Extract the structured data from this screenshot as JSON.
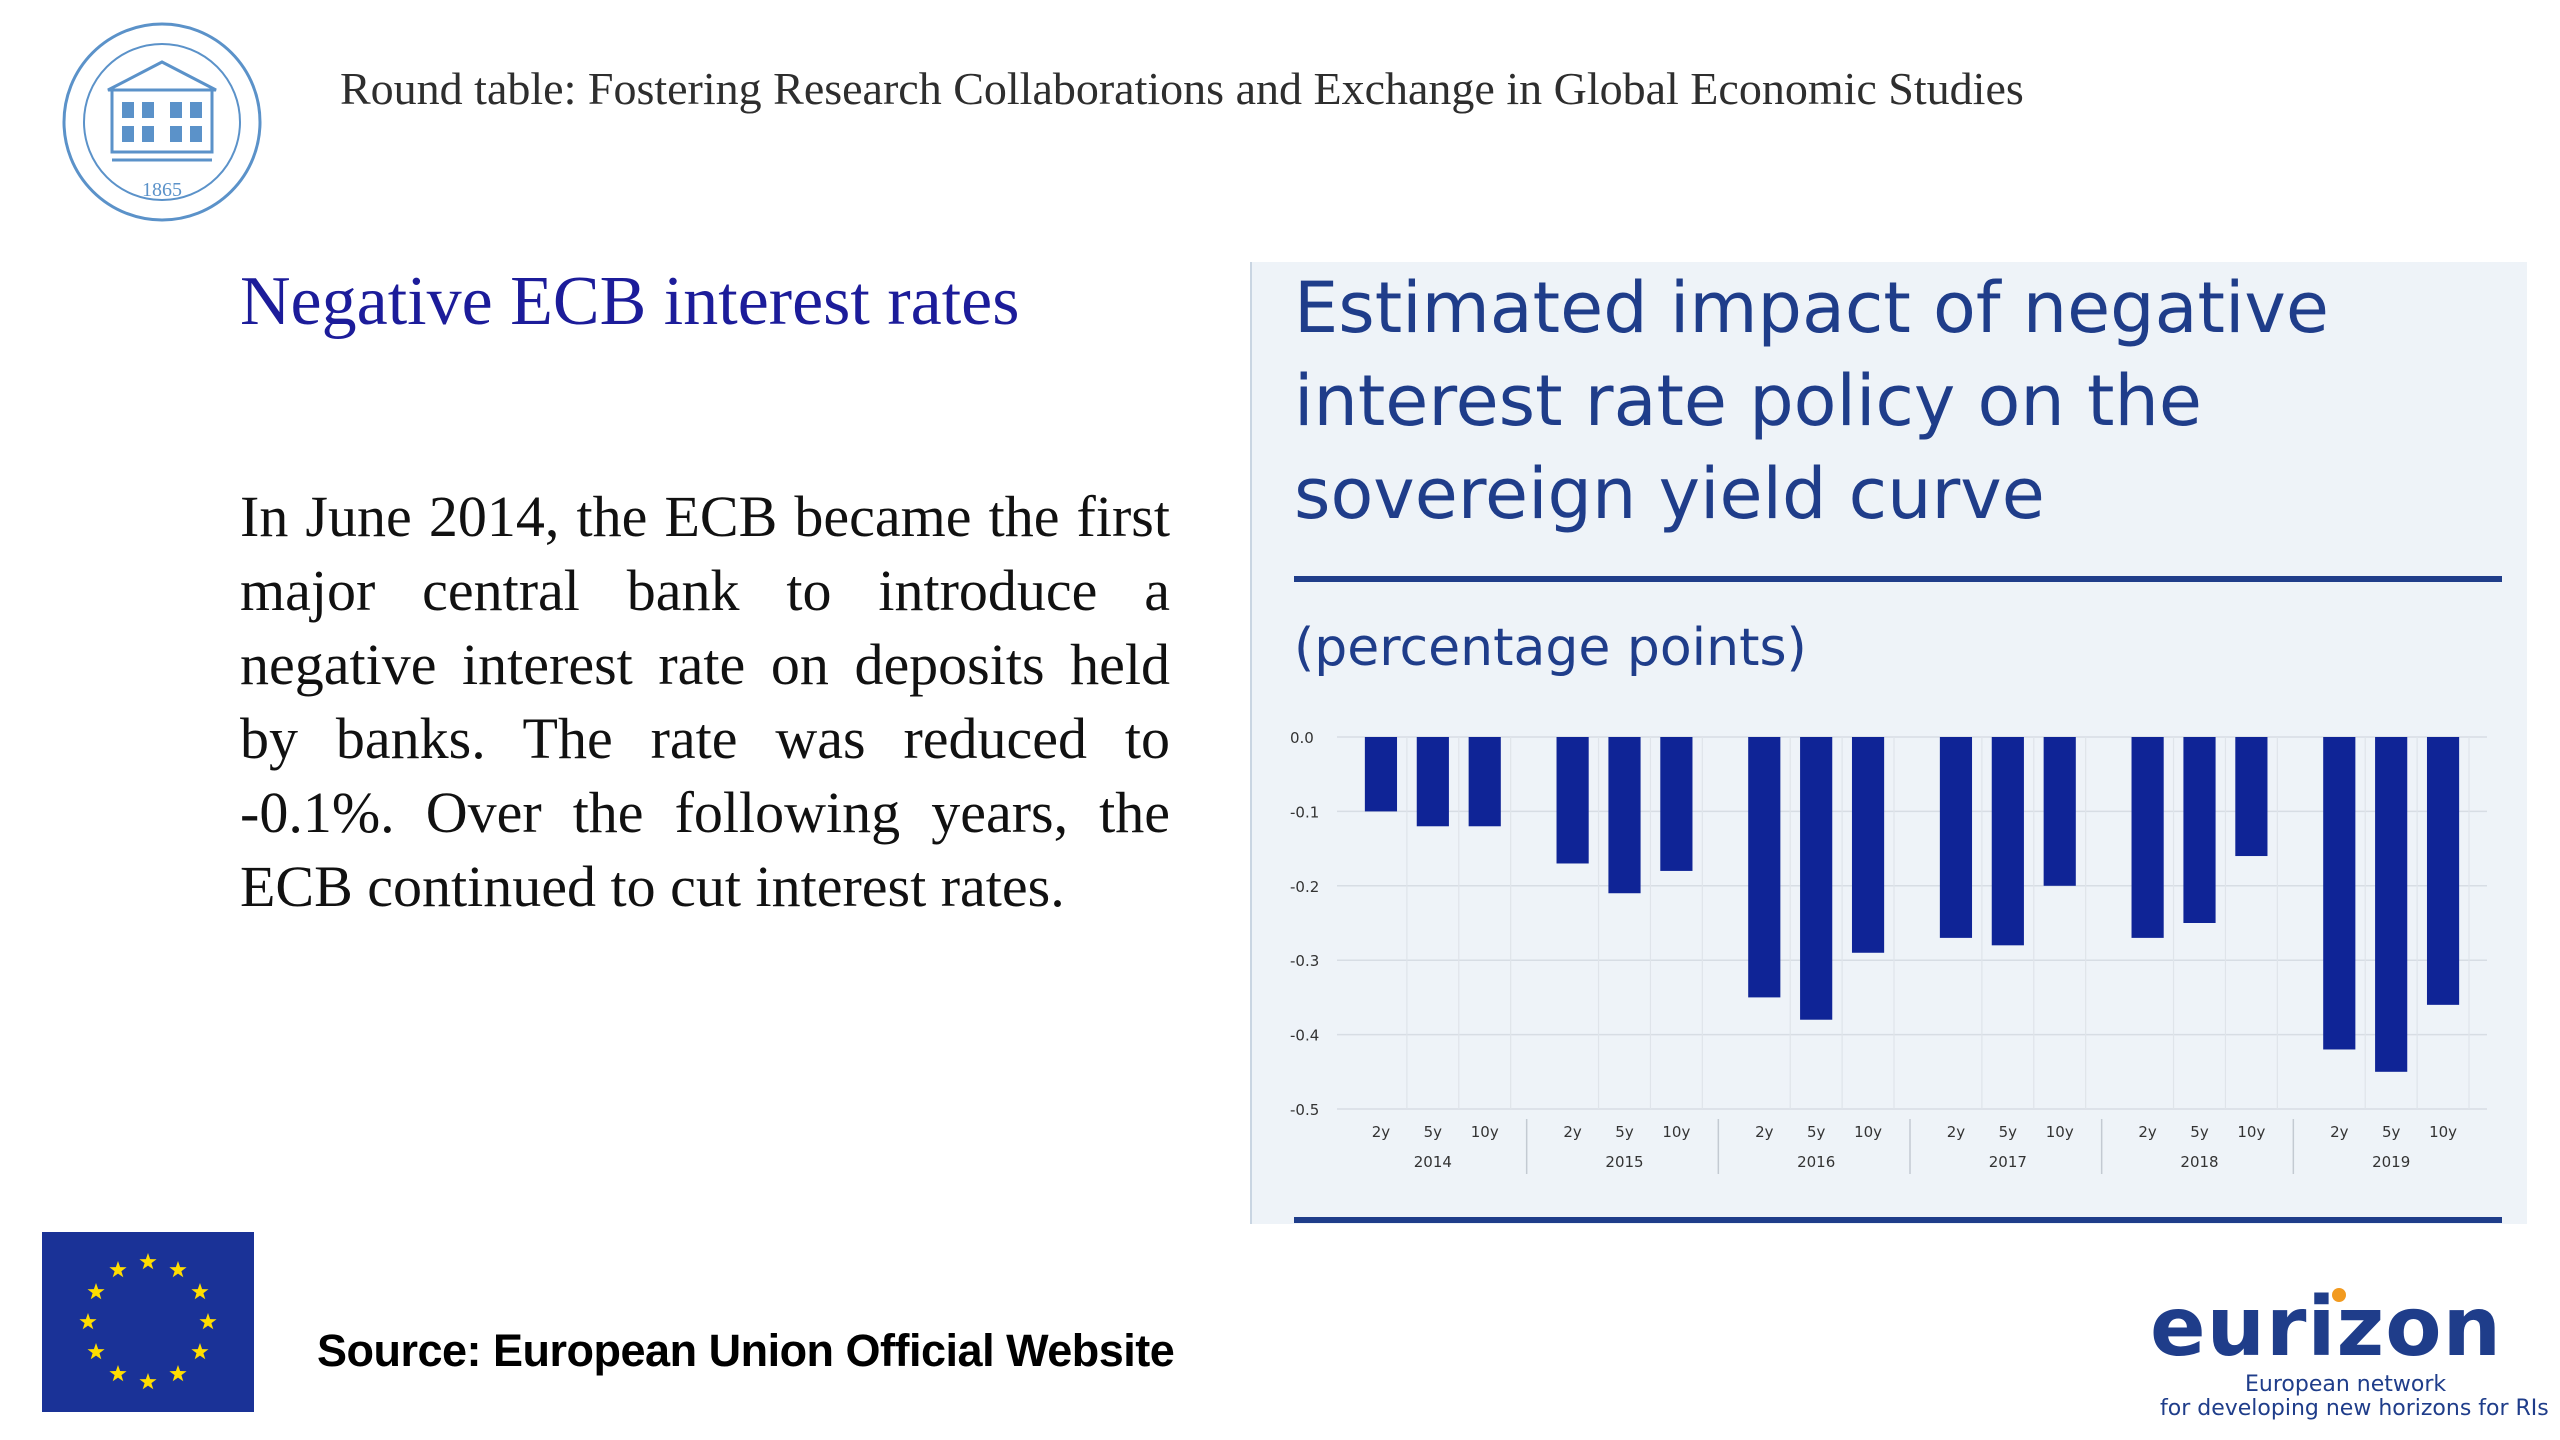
{
  "header": {
    "title": "Round table: Fostering Research Collaborations and Exchange in Global Economic Studies",
    "seal_year": "1865"
  },
  "slide": {
    "title": "Negative ECB interest rates",
    "body": "In June 2014, the ECB became the first major central bank to introduce a negative interest rate on deposits held by banks. The rate was reduced to -0.1%. Over the following years, the ECB continued to cut interest rates."
  },
  "source": "Source: European Union Official Website",
  "logo": {
    "name": "eurizon",
    "tagline_1": "European network",
    "tagline_2": "for developing new horizons for RIs"
  },
  "colors": {
    "bar": "#0f2496",
    "title": "#1f3d8a",
    "slide_title": "#1c1c9a",
    "panel_bg": "#eef3f8",
    "eu_blue": "#1a3297",
    "eu_star": "#ffdd00"
  },
  "chart_data": {
    "type": "bar",
    "title": "Estimated impact of negative interest rate policy on the sovereign yield curve",
    "subtitle": "(percentage points)",
    "ylim": [
      -0.5,
      0.0
    ],
    "yticks": [
      "0.0",
      "-0.1",
      "-0.2",
      "-0.3",
      "-0.4",
      "-0.5"
    ],
    "grid": true,
    "groups": [
      {
        "year": "2014",
        "maturities": [
          "2y",
          "5y",
          "10y"
        ],
        "values": [
          -0.1,
          -0.12,
          -0.12
        ]
      },
      {
        "year": "2015",
        "maturities": [
          "2y",
          "5y",
          "10y"
        ],
        "values": [
          -0.17,
          -0.21,
          -0.18
        ]
      },
      {
        "year": "2016",
        "maturities": [
          "2y",
          "5y",
          "10y"
        ],
        "values": [
          -0.35,
          -0.38,
          -0.29
        ]
      },
      {
        "year": "2017",
        "maturities": [
          "2y",
          "5y",
          "10y"
        ],
        "values": [
          -0.27,
          -0.28,
          -0.2
        ]
      },
      {
        "year": "2018",
        "maturities": [
          "2y",
          "5y",
          "10y"
        ],
        "values": [
          -0.27,
          -0.25,
          -0.16
        ]
      },
      {
        "year": "2019",
        "maturities": [
          "2y",
          "5y",
          "10y"
        ],
        "values": [
          -0.42,
          -0.45,
          -0.36
        ]
      }
    ]
  }
}
